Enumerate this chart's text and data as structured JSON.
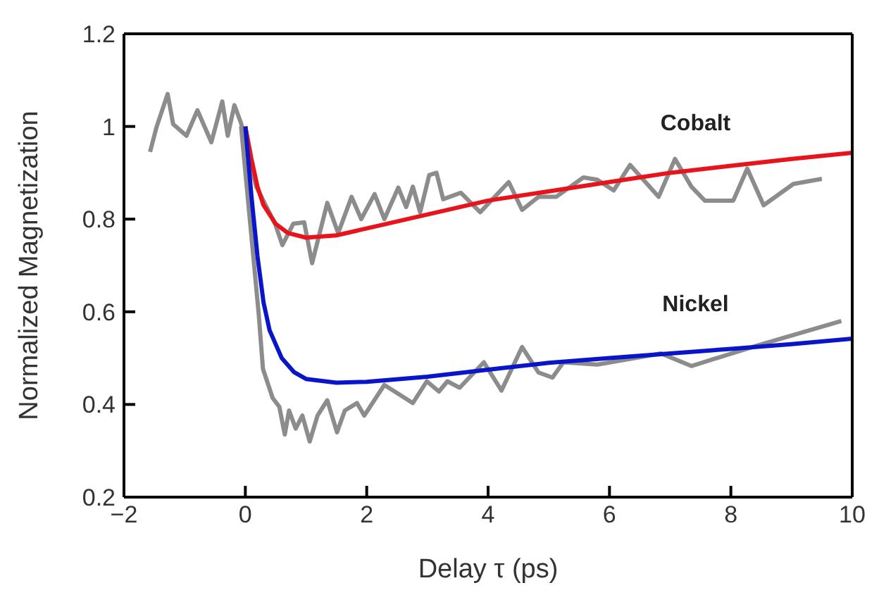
{
  "chart_data": {
    "type": "line",
    "xlabel": "Delay τ (ps)",
    "ylabel": "Normalized Magnetization",
    "xlim": [
      -2,
      10
    ],
    "xticks": [
      {
        "value": -2,
        "label": "−2"
      },
      0,
      2,
      4,
      6,
      8,
      10
    ],
    "ylim": [
      0.2,
      1.2
    ],
    "yticks": [
      0.2,
      0.4,
      0.6,
      0.8,
      1,
      1.2
    ],
    "legend": false,
    "marker": "none",
    "line_style": "solid",
    "series": [
      {
        "color": "#8c8c8c",
        "x": [
          -1.57,
          -1.46,
          -1.28,
          -1.19,
          -0.97,
          -0.79,
          -0.56,
          -0.38,
          -0.29,
          -0.18,
          -0.07,
          0.18,
          0.49,
          0.61,
          0.79,
          0.97,
          1.1,
          1.35,
          1.53,
          1.75,
          1.91,
          2.13,
          2.29,
          2.52,
          2.65,
          2.76,
          2.88,
          3.03,
          3.15,
          3.26,
          3.55,
          3.87,
          4.34,
          4.56,
          4.83,
          5.12,
          5.57,
          5.8,
          6.07,
          6.34,
          6.81,
          7.08,
          7.35,
          7.57,
          8.04,
          8.27,
          8.54,
          9.03,
          9.5
        ],
        "values": [
          0.945,
          1.0,
          1.07,
          1.005,
          0.98,
          1.035,
          0.966,
          1.054,
          0.98,
          1.046,
          1.007,
          0.87,
          0.79,
          0.744,
          0.79,
          0.793,
          0.705,
          0.835,
          0.77,
          0.848,
          0.8,
          0.854,
          0.8,
          0.868,
          0.826,
          0.87,
          0.815,
          0.895,
          0.9,
          0.843,
          0.857,
          0.815,
          0.88,
          0.82,
          0.848,
          0.848,
          0.89,
          0.885,
          0.862,
          0.917,
          0.848,
          0.93,
          0.87,
          0.84,
          0.84,
          0.909,
          0.83,
          0.876,
          0.887
        ]
      },
      {
        "color": "#8c8c8c",
        "x": [
          -0.07,
          0.22,
          0.29,
          0.45,
          0.56,
          0.65,
          0.72,
          0.83,
          0.94,
          1.06,
          1.19,
          1.35,
          1.51,
          1.64,
          1.84,
          1.96,
          2.29,
          2.52,
          2.76,
          2.99,
          3.19,
          3.33,
          3.53,
          3.93,
          4.22,
          4.56,
          4.83,
          5.06,
          5.24,
          5.8,
          6.85,
          7.35,
          8.43,
          9.82
        ],
        "values": [
          1.0,
          0.596,
          0.477,
          0.414,
          0.395,
          0.335,
          0.387,
          0.348,
          0.376,
          0.32,
          0.376,
          0.409,
          0.34,
          0.387,
          0.403,
          0.376,
          0.442,
          0.423,
          0.403,
          0.45,
          0.428,
          0.45,
          0.436,
          0.491,
          0.43,
          0.524,
          0.469,
          0.458,
          0.491,
          0.486,
          0.51,
          0.483,
          0.527,
          0.58
        ]
      },
      {
        "name": "Cobalt",
        "color": "#e8141c",
        "x": [
          0,
          0.1,
          0.2,
          0.3,
          0.5,
          0.7,
          1,
          1.5,
          2,
          3,
          4,
          5,
          6,
          7,
          8,
          9,
          10
        ],
        "values": [
          1.0,
          0.93,
          0.87,
          0.83,
          0.79,
          0.77,
          0.76,
          0.765,
          0.78,
          0.81,
          0.84,
          0.86,
          0.88,
          0.9,
          0.915,
          0.93,
          0.943
        ]
      },
      {
        "name": "Nickel",
        "color": "#0a14c8",
        "x": [
          0,
          0.1,
          0.2,
          0.3,
          0.4,
          0.6,
          0.8,
          1,
          1.5,
          2,
          3,
          4,
          5,
          6,
          7,
          8,
          9,
          10
        ],
        "values": [
          1.0,
          0.85,
          0.72,
          0.62,
          0.56,
          0.5,
          0.47,
          0.455,
          0.447,
          0.449,
          0.46,
          0.475,
          0.49,
          0.5,
          0.51,
          0.52,
          0.53,
          0.542
        ]
      }
    ]
  }
}
